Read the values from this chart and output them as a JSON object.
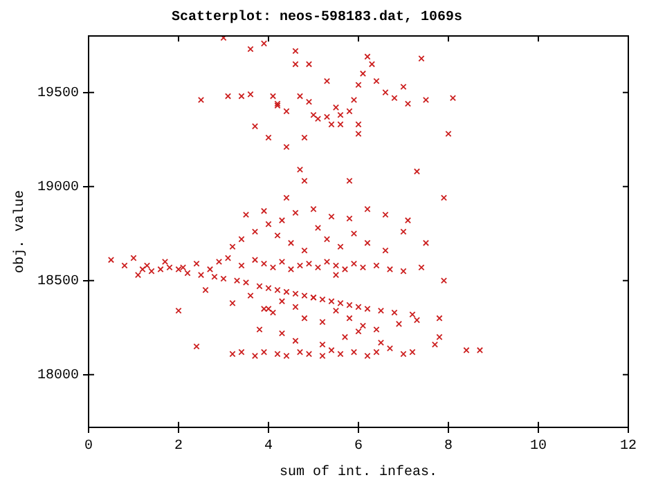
{
  "chart_data": {
    "type": "scatter",
    "title": "Scatterplot: neos-598183.dat, 1069s",
    "xlabel": "sum of int. infeas.",
    "ylabel": "obj. value",
    "xlim": [
      0,
      12
    ],
    "ylim": [
      17720,
      19800
    ],
    "xticks": [
      0,
      2,
      4,
      6,
      8,
      10,
      12
    ],
    "yticks": [
      18000,
      18500,
      19000,
      19500
    ],
    "grid": false,
    "legend": false,
    "marker": "cross",
    "series": [
      {
        "color": "#cc1f1f",
        "x": [
          3.0,
          3.6,
          3.9,
          4.6,
          4.6,
          4.9,
          5.3,
          2.5,
          3.1,
          3.4,
          3.6,
          4.1,
          4.2,
          4.4,
          4.7,
          4.9,
          5.0,
          5.1,
          5.3,
          5.4,
          5.5,
          5.6,
          5.6,
          5.8,
          5.9,
          6.0,
          6.1,
          6.2,
          6.3,
          6.4,
          6.6,
          6.8,
          7.1,
          7.5,
          6.0,
          6.0,
          7.4,
          7.0,
          8.1,
          8.0,
          4.8,
          4.4,
          4.0,
          3.7,
          4.2,
          4.7,
          4.8,
          4.4,
          5.8,
          7.3,
          7.9,
          0.5,
          0.8,
          1.0,
          1.1,
          1.2,
          1.4,
          1.6,
          1.8,
          2.0,
          2.2,
          2.5,
          2.8,
          3.0,
          3.3,
          3.5,
          3.8,
          4.0,
          4.2,
          4.4,
          4.6,
          4.8,
          5.0,
          5.2,
          5.4,
          5.6,
          5.8,
          6.0,
          6.2,
          6.5,
          6.8,
          7.2,
          7.8,
          1.3,
          1.7,
          2.1,
          2.4,
          2.7,
          2.9,
          3.1,
          3.4,
          3.7,
          3.9,
          4.1,
          4.3,
          4.5,
          4.7,
          4.9,
          5.1,
          5.3,
          5.5,
          5.7,
          5.9,
          6.1,
          6.4,
          6.7,
          7.0,
          7.4,
          7.9,
          2.0,
          2.6,
          3.2,
          3.6,
          3.9,
          4.1,
          4.3,
          4.6,
          4.8,
          5.0,
          5.2,
          5.5,
          5.8,
          6.1,
          6.4,
          6.9,
          7.3,
          7.8,
          3.2,
          3.4,
          3.7,
          4.0,
          4.2,
          4.5,
          4.8,
          5.1,
          5.3,
          5.6,
          5.9,
          6.2,
          6.6,
          7.1,
          3.5,
          3.9,
          4.3,
          4.6,
          5.0,
          5.4,
          5.8,
          6.2,
          6.6,
          7.0,
          7.5,
          3.2,
          3.4,
          3.7,
          3.9,
          4.2,
          4.4,
          4.7,
          4.9,
          5.2,
          5.4,
          5.6,
          5.9,
          6.2,
          6.4,
          6.7,
          7.0,
          7.2,
          3.8,
          4.3,
          4.6,
          5.2,
          5.7,
          6.0,
          6.5,
          7.7,
          8.4,
          8.7,
          2.4,
          4.0,
          5.5
        ],
        "values": [
          19790,
          19730,
          19760,
          19720,
          19650,
          19650,
          19560,
          19460,
          19480,
          19480,
          19490,
          19480,
          19440,
          19400,
          19480,
          19450,
          19380,
          19360,
          19370,
          19330,
          19420,
          19380,
          19330,
          19400,
          19460,
          19540,
          19600,
          19690,
          19650,
          19560,
          19500,
          19470,
          19440,
          19460,
          19330,
          19280,
          19680,
          19530,
          19470,
          19280,
          19260,
          19210,
          19260,
          19320,
          19430,
          19090,
          19030,
          18940,
          19030,
          19080,
          18940,
          18610,
          18580,
          18620,
          18530,
          18560,
          18550,
          18560,
          18570,
          18560,
          18540,
          18530,
          18520,
          18510,
          18500,
          18490,
          18470,
          18460,
          18450,
          18440,
          18430,
          18420,
          18410,
          18400,
          18390,
          18380,
          18370,
          18360,
          18350,
          18340,
          18330,
          18320,
          18300,
          18580,
          18600,
          18570,
          18590,
          18560,
          18600,
          18620,
          18580,
          18610,
          18590,
          18570,
          18600,
          18560,
          18580,
          18590,
          18570,
          18600,
          18580,
          18560,
          18590,
          18570,
          18580,
          18560,
          18550,
          18570,
          18500,
          18340,
          18450,
          18380,
          18420,
          18350,
          18330,
          18390,
          18360,
          18300,
          18410,
          18280,
          18340,
          18300,
          18260,
          18240,
          18270,
          18290,
          18200,
          18680,
          18720,
          18760,
          18800,
          18740,
          18700,
          18660,
          18780,
          18720,
          18680,
          18750,
          18700,
          18660,
          18820,
          18850,
          18870,
          18820,
          18860,
          18880,
          18840,
          18830,
          18880,
          18850,
          18760,
          18700,
          18110,
          18120,
          18100,
          18120,
          18110,
          18100,
          18120,
          18110,
          18100,
          18130,
          18110,
          18120,
          18100,
          18120,
          18140,
          18110,
          18120,
          18240,
          18220,
          18180,
          18160,
          18200,
          18230,
          18170,
          18160,
          18130,
          18130,
          18150,
          18350,
          18530
        ]
      }
    ]
  }
}
